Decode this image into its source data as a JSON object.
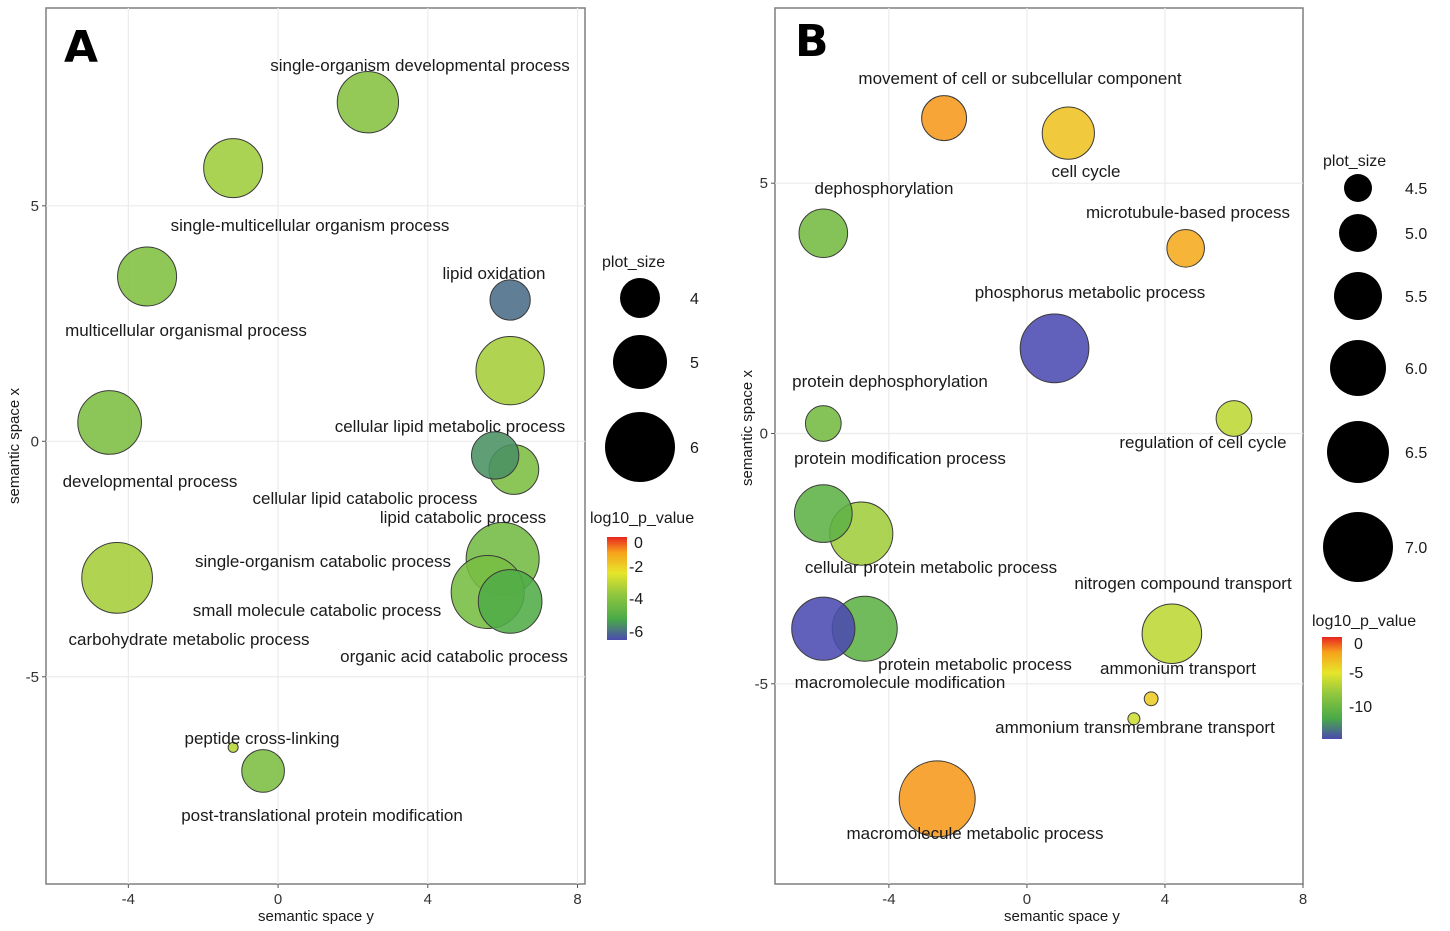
{
  "colors": {
    "scale": [
      "#2f3fa0",
      "#5a4fb3",
      "#4da943",
      "#8cc63f",
      "#c8d92b",
      "#e8e82a",
      "#ffd21a",
      "#f7a21b",
      "#e8251f"
    ],
    "point_stroke": "#3a3a3a",
    "grid": "#ebebeb",
    "panel_border": "#7f7f7f",
    "size_legend": "#000000"
  },
  "chart_data": [
    {
      "type": "scatter",
      "panel_label": "A",
      "xlabel": "semantic space y",
      "ylabel": "semantic space x",
      "xlim": [
        -6.2,
        8.2
      ],
      "ylim": [
        -9.4,
        9.2
      ],
      "grid": true,
      "x_ticks": [
        -4,
        0,
        4,
        8
      ],
      "x_tick_labels": [
        "-4",
        "0",
        "4",
        "8"
      ],
      "y_ticks": [
        -5,
        0,
        5
      ],
      "y_tick_labels": [
        "-5",
        "0",
        "5"
      ],
      "points": [
        {
          "label": "single-organism developmental process",
          "x": 2.4,
          "y": 7.2,
          "size": 5.5,
          "value": -3.8
        },
        {
          "label": "single-multicellular organism process",
          "x": -1.2,
          "y": 5.8,
          "size": 5.4,
          "value": -3.3
        },
        {
          "label": "multicellular organismal process",
          "x": -3.5,
          "y": 3.5,
          "size": 5.4,
          "value": -3.9
        },
        {
          "label": "lipid oxidation",
          "x": 6.2,
          "y": 3.0,
          "size": 4.6,
          "value": -6.0
        },
        {
          "label": "cellular lipid metabolic process",
          "x": 6.2,
          "y": 1.5,
          "size": 5.8,
          "value": -3.2
        },
        {
          "label": "developmental process",
          "x": -4.5,
          "y": 0.4,
          "size": 5.6,
          "value": -4.0
        },
        {
          "label": "cellular lipid catabolic process",
          "x": 5.8,
          "y": -0.3,
          "size": 4.9,
          "value": -5.5
        },
        {
          "label": "lipid catabolic process",
          "x": 6.3,
          "y": -0.6,
          "size": 5.0,
          "value": -4.0
        },
        {
          "label": "single-organism catabolic process",
          "x": 6.0,
          "y": -2.5,
          "size": 6.0,
          "value": -4.2
        },
        {
          "label": "small molecule catabolic process",
          "x": 5.6,
          "y": -3.2,
          "size": 6.0,
          "value": -4.1
        },
        {
          "label": "organic acid catabolic process",
          "x": 6.2,
          "y": -3.4,
          "size": 5.6,
          "value": -5.0
        },
        {
          "label": "carbohydrate metabolic process",
          "x": -4.3,
          "y": -2.9,
          "size": 5.9,
          "value": -3.2
        },
        {
          "label": "peptide cross-linking",
          "x": -1.2,
          "y": -6.5,
          "size": 3.3,
          "value": -2.9
        },
        {
          "label": "post-translational protein modification",
          "x": -0.4,
          "y": -7.0,
          "size": 4.7,
          "value": -4.0
        }
      ],
      "legend_size": {
        "title": "plot_size",
        "values": [
          "4",
          "5",
          "6"
        ]
      },
      "legend_color": {
        "title": "log10_p_value",
        "values": [
          "0",
          "-2",
          "-4",
          "-6"
        ],
        "range": [
          -6.5,
          0.2
        ]
      }
    },
    {
      "type": "scatter",
      "panel_label": "B",
      "xlabel": "semantic space y",
      "ylabel": "semantic space x",
      "xlim": [
        -7.3,
        8.0
      ],
      "ylim": [
        -9.0,
        8.5
      ],
      "grid": true,
      "x_ticks": [
        -4,
        0,
        4,
        8
      ],
      "x_tick_labels": [
        "-4",
        "0",
        "4",
        "8"
      ],
      "y_ticks": [
        -5,
        0,
        5
      ],
      "y_tick_labels": [
        "-5",
        "0",
        "5"
      ],
      "points": [
        {
          "label": "movement of cell or subcellular component",
          "x": -2.4,
          "y": 6.3,
          "size": 5.2,
          "value": -1.5
        },
        {
          "label": "cell cycle",
          "x": 1.2,
          "y": 6.0,
          "size": 5.6,
          "value": -3.0
        },
        {
          "label": "dephosphorylation",
          "x": -5.9,
          "y": 4.0,
          "size": 5.4,
          "value": -9.0
        },
        {
          "label": "microtubule-based process",
          "x": 4.6,
          "y": 3.7,
          "size": 4.8,
          "value": -2.0
        },
        {
          "label": "phosphorus metabolic process",
          "x": 0.8,
          "y": 1.7,
          "size": 6.5,
          "value": -14.0
        },
        {
          "label": "protein dephosphorylation",
          "x": -5.9,
          "y": 0.2,
          "size": 4.7,
          "value": -9.0
        },
        {
          "label": "regulation of cell cycle",
          "x": 6.0,
          "y": 0.3,
          "size": 4.7,
          "value": -6.0
        },
        {
          "label": "protein modification process",
          "x": -5.9,
          "y": -1.6,
          "size": 5.9,
          "value": -10.0
        },
        {
          "label": "cellular protein metabolic process",
          "x": -4.8,
          "y": -2.0,
          "size": 6.2,
          "value": -7.0
        },
        {
          "label": "macromolecule modification",
          "x": -5.9,
          "y": -3.9,
          "size": 6.2,
          "value": -14.0
        },
        {
          "label": "protein metabolic process",
          "x": -4.7,
          "y": -3.9,
          "size": 6.3,
          "value": -10.0
        },
        {
          "label": "nitrogen compound transport",
          "x": 4.2,
          "y": -4.0,
          "size": 6.0,
          "value": -6.0
        },
        {
          "label": "ammonium transport",
          "x": 3.6,
          "y": -5.3,
          "size": 3.5,
          "value": -3.5
        },
        {
          "label": "ammonium transmembrane transport",
          "x": 3.1,
          "y": -5.7,
          "size": 3.4,
          "value": -5.5
        },
        {
          "label": "macromolecule metabolic process",
          "x": -2.6,
          "y": -7.3,
          "size": 6.9,
          "value": -1.5
        }
      ],
      "legend_size": {
        "title": "plot_size",
        "values": [
          "4.5",
          "5.0",
          "5.5",
          "6.0",
          "6.5",
          "7.0"
        ]
      },
      "legend_color": {
        "title": "log10_p_value",
        "values": [
          "0",
          "-5",
          "-10"
        ],
        "range": [
          -14.0,
          0.5
        ]
      }
    }
  ]
}
